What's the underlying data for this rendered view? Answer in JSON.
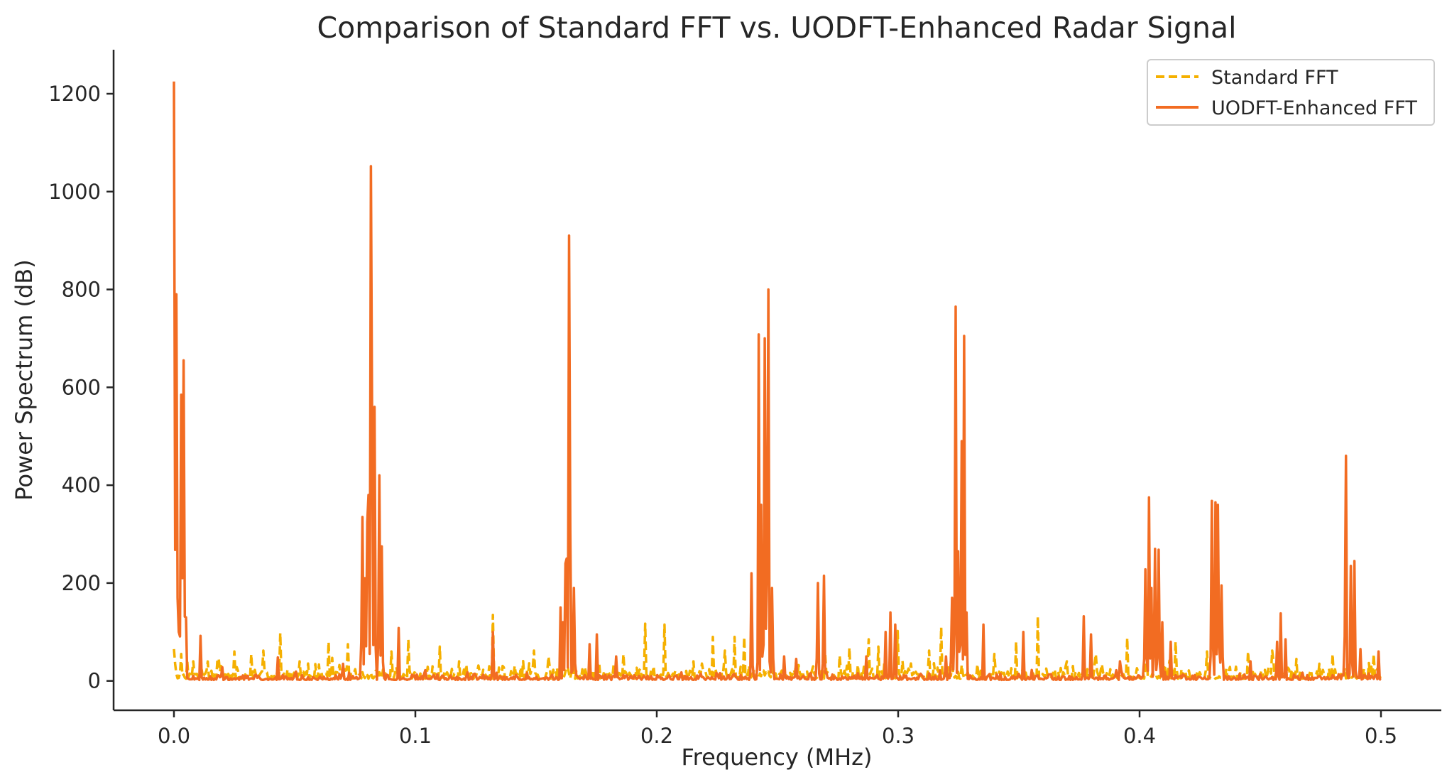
{
  "chart_data": {
    "type": "line",
    "title": "Comparison of Standard FFT vs. UODFT-Enhanced Radar Signal",
    "xlabel": "Frequency (MHz)",
    "ylabel": "Power Spectrum (dB)",
    "xlim": [
      -0.025,
      0.525
    ],
    "ylim": [
      -60,
      1290
    ],
    "xticks": [
      0.0,
      0.1,
      0.2,
      0.3,
      0.4,
      0.5
    ],
    "xtick_labels": [
      "0.0",
      "0.1",
      "0.2",
      "0.3",
      "0.4",
      "0.5"
    ],
    "yticks": [
      0,
      200,
      400,
      600,
      800,
      1000,
      1200
    ],
    "ytick_labels": [
      "0",
      "200",
      "400",
      "600",
      "800",
      "1000",
      "1200"
    ],
    "grid": false,
    "legend_position": "top-right",
    "series": [
      {
        "name": "Standard FFT",
        "style": "dashed",
        "color": "#f5b000",
        "baseline": 18,
        "peaks": [
          [
            0.0,
            65
          ],
          [
            0.003,
            55
          ],
          [
            0.008,
            40
          ],
          [
            0.018,
            45
          ],
          [
            0.025,
            60
          ],
          [
            0.032,
            55
          ],
          [
            0.037,
            62
          ],
          [
            0.044,
            98
          ],
          [
            0.052,
            40
          ],
          [
            0.064,
            80
          ],
          [
            0.072,
            75
          ],
          [
            0.09,
            60
          ],
          [
            0.097,
            85
          ],
          [
            0.11,
            70
          ],
          [
            0.118,
            40
          ],
          [
            0.132,
            135
          ],
          [
            0.149,
            62
          ],
          [
            0.155,
            50
          ],
          [
            0.165,
            45
          ],
          [
            0.176,
            35
          ],
          [
            0.186,
            55
          ],
          [
            0.195,
            117
          ],
          [
            0.203,
            115
          ],
          [
            0.215,
            40
          ],
          [
            0.223,
            90
          ],
          [
            0.228,
            62
          ],
          [
            0.232,
            90
          ],
          [
            0.236,
            90
          ],
          [
            0.258,
            42
          ],
          [
            0.27,
            55
          ],
          [
            0.28,
            68
          ],
          [
            0.288,
            85
          ],
          [
            0.292,
            70
          ],
          [
            0.3,
            102
          ],
          [
            0.313,
            62
          ],
          [
            0.318,
            110
          ],
          [
            0.34,
            55
          ],
          [
            0.349,
            80
          ],
          [
            0.358,
            132
          ],
          [
            0.37,
            40
          ],
          [
            0.382,
            55
          ],
          [
            0.395,
            88
          ],
          [
            0.403,
            62
          ],
          [
            0.415,
            80
          ],
          [
            0.428,
            60
          ],
          [
            0.445,
            60
          ],
          [
            0.455,
            62
          ],
          [
            0.465,
            45
          ],
          [
            0.48,
            55
          ],
          [
            0.497,
            55
          ]
        ]
      },
      {
        "name": "UODFT-Enhanced FFT",
        "style": "solid",
        "color": "#f26c22",
        "baseline": 8,
        "peaks": [
          [
            0.0,
            1225
          ],
          [
            0.0005,
            140
          ],
          [
            0.001,
            790
          ],
          [
            0.002,
            100
          ],
          [
            0.003,
            585
          ],
          [
            0.0035,
            210
          ],
          [
            0.004,
            655
          ],
          [
            0.005,
            130
          ],
          [
            0.011,
            92
          ],
          [
            0.02,
            28
          ],
          [
            0.043,
            48
          ],
          [
            0.07,
            35
          ],
          [
            0.078,
            335
          ],
          [
            0.079,
            210
          ],
          [
            0.08,
            325
          ],
          [
            0.0805,
            380
          ],
          [
            0.0815,
            1052
          ],
          [
            0.082,
            530
          ],
          [
            0.083,
            560
          ],
          [
            0.085,
            420
          ],
          [
            0.086,
            275
          ],
          [
            0.093,
            108
          ],
          [
            0.104,
            22
          ],
          [
            0.132,
            100
          ],
          [
            0.16,
            150
          ],
          [
            0.161,
            120
          ],
          [
            0.162,
            240
          ],
          [
            0.1625,
            250
          ],
          [
            0.1635,
            910
          ],
          [
            0.164,
            310
          ],
          [
            0.1655,
            190
          ],
          [
            0.172,
            75
          ],
          [
            0.175,
            95
          ],
          [
            0.183,
            50
          ],
          [
            0.239,
            220
          ],
          [
            0.242,
            708
          ],
          [
            0.2432,
            360
          ],
          [
            0.2445,
            700
          ],
          [
            0.2455,
            230
          ],
          [
            0.2462,
            800
          ],
          [
            0.2475,
            190
          ],
          [
            0.253,
            50
          ],
          [
            0.258,
            45
          ],
          [
            0.267,
            200
          ],
          [
            0.2695,
            215
          ],
          [
            0.287,
            50
          ],
          [
            0.295,
            100
          ],
          [
            0.297,
            140
          ],
          [
            0.299,
            115
          ],
          [
            0.32,
            50
          ],
          [
            0.3225,
            170
          ],
          [
            0.3237,
            765
          ],
          [
            0.3248,
            265
          ],
          [
            0.3262,
            490
          ],
          [
            0.3272,
            705
          ],
          [
            0.3285,
            140
          ],
          [
            0.3355,
            115
          ],
          [
            0.352,
            100
          ],
          [
            0.377,
            132
          ],
          [
            0.38,
            95
          ],
          [
            0.392,
            40
          ],
          [
            0.4025,
            228
          ],
          [
            0.404,
            375
          ],
          [
            0.405,
            190
          ],
          [
            0.4065,
            270
          ],
          [
            0.4078,
            268
          ],
          [
            0.4095,
            120
          ],
          [
            0.413,
            80
          ],
          [
            0.4298,
            368
          ],
          [
            0.4312,
            365
          ],
          [
            0.4325,
            360
          ],
          [
            0.4338,
            195
          ],
          [
            0.446,
            40
          ],
          [
            0.457,
            80
          ],
          [
            0.4585,
            138
          ],
          [
            0.4605,
            85
          ],
          [
            0.4855,
            460
          ],
          [
            0.4875,
            235
          ],
          [
            0.489,
            245
          ],
          [
            0.4915,
            65
          ],
          [
            0.4992,
            60
          ]
        ]
      }
    ]
  }
}
